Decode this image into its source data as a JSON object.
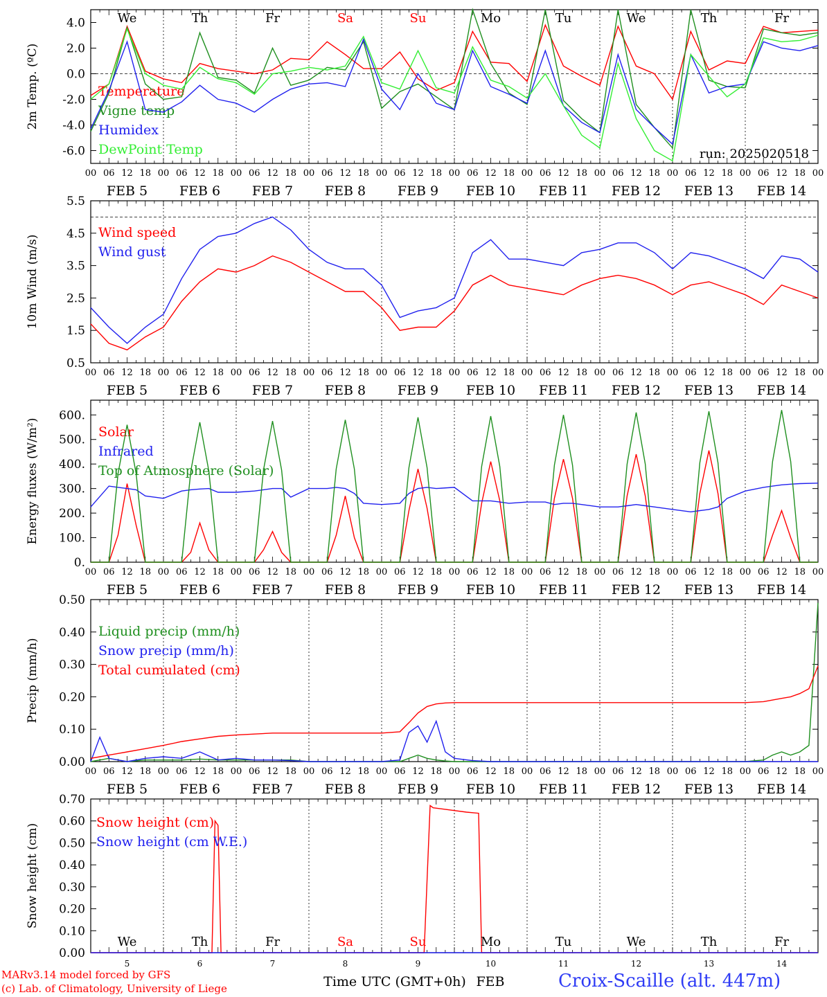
{
  "footer": {
    "model_line": "MARv3.14 model forced by GFS",
    "credit_line": "(c) Lab. of Climatology, University of Liege",
    "time_axis_label": "Time UTC (GMT+0h)",
    "month_label": "FEB",
    "station": "Croix-Scaille (alt. 447m)"
  },
  "colors": {
    "red": "#ff0000",
    "green": "#1f8f1f",
    "blue": "#2020ee",
    "lightgreen": "#33ee33"
  },
  "chart_data": [
    {
      "type": "line",
      "id": "temperature",
      "ylabel": "2m Temp. (ºC)",
      "ylim": [
        -7,
        5
      ],
      "yticks": [
        "4.0",
        "2.0",
        "0.0",
        "-2.0",
        "-4.0",
        "-6.0"
      ],
      "ytick_values": [
        4,
        2,
        0,
        -2,
        -4,
        -6
      ],
      "reference_line": 0,
      "annotation": "run: 2025020518",
      "day_labels": [
        {
          "label": "We",
          "color": "#000000"
        },
        {
          "label": "Th",
          "color": "#000000"
        },
        {
          "label": "Fr",
          "color": "#000000"
        },
        {
          "label": "Sa",
          "color": "#ff0000"
        },
        {
          "label": "Su",
          "color": "#ff0000"
        },
        {
          "label": "Mo",
          "color": "#000000"
        },
        {
          "label": "Tu",
          "color": "#000000"
        },
        {
          "label": "We",
          "color": "#000000"
        },
        {
          "label": "Th",
          "color": "#000000"
        },
        {
          "label": "Fr",
          "color": "#000000"
        }
      ],
      "x_hours": [
        0,
        6,
        12,
        18,
        24,
        30,
        36,
        42,
        48,
        54,
        60,
        66,
        72,
        78,
        84,
        90,
        96,
        102,
        108,
        114,
        120,
        126,
        132,
        138,
        144,
        150,
        156,
        162,
        168,
        174,
        180,
        186,
        192,
        198,
        204,
        210,
        216,
        222,
        228,
        234,
        240
      ],
      "series": [
        {
          "name": "Temperature",
          "color": "#ff0000",
          "values": [
            -1.7,
            -0.8,
            3.7,
            0.2,
            -0.4,
            -0.7,
            0.8,
            0.4,
            0.2,
            0.0,
            0.3,
            1.2,
            1.1,
            2.5,
            1.5,
            0.4,
            0.4,
            1.7,
            -0.4,
            -1.3,
            -0.7,
            3.3,
            0.9,
            0.8,
            -0.6,
            3.8,
            0.6,
            -0.2,
            -0.9,
            3.7,
            0.6,
            0.0,
            -2.0,
            3.3,
            0.3,
            1.0,
            0.8,
            3.7,
            3.2,
            3.3,
            3.4
          ]
        },
        {
          "name": "Vigne temp",
          "color": "#1f8f1f",
          "values": [
            -4.5,
            -1.5,
            3.6,
            -0.8,
            -2.0,
            -1.8,
            3.2,
            -0.3,
            -0.5,
            -1.5,
            2.0,
            -0.9,
            -0.5,
            0.5,
            0.3,
            2.5,
            -2.7,
            -1.4,
            -0.8,
            -1.8,
            -2.8,
            5.0,
            0.8,
            -1.5,
            -2.4,
            5.0,
            -2.1,
            -3.5,
            -4.6,
            5.0,
            -2.4,
            -4.2,
            -5.8,
            5.0,
            -0.5,
            -1.0,
            -1.1,
            3.5,
            3.2,
            3.0,
            3.2
          ]
        },
        {
          "name": "Humidex",
          "color": "#2020ee",
          "values": [
            -4.3,
            -1.3,
            2.5,
            -2.8,
            -3.0,
            -2.2,
            -0.9,
            -2.0,
            -2.3,
            -3.0,
            -2.0,
            -1.2,
            -0.8,
            -0.7,
            -1.0,
            2.7,
            -1.2,
            -2.8,
            0.0,
            -2.3,
            -2.8,
            1.8,
            -1.0,
            -1.6,
            -2.3,
            1.8,
            -2.5,
            -3.8,
            -4.6,
            1.5,
            -2.8,
            -4.2,
            -5.5,
            1.5,
            -1.5,
            -1.0,
            -0.8,
            2.5,
            2.0,
            1.8,
            2.2
          ]
        },
        {
          "name": "DewPoint Temp",
          "color": "#33ee33",
          "values": [
            -2.0,
            -0.8,
            3.5,
            0.0,
            -0.9,
            -1.2,
            0.5,
            -0.4,
            -0.7,
            -1.6,
            0.0,
            0.2,
            0.5,
            0.3,
            0.6,
            2.9,
            -0.7,
            -1.2,
            1.8,
            -1.1,
            -1.5,
            2.1,
            -0.5,
            -1.0,
            -1.9,
            0.0,
            -2.5,
            -4.8,
            -5.8,
            0.8,
            -3.5,
            -6.0,
            -6.8,
            1.5,
            -0.2,
            -1.8,
            -0.8,
            2.8,
            2.5,
            2.6,
            3.0
          ]
        }
      ]
    },
    {
      "type": "line",
      "id": "wind",
      "ylabel": "10m Wind (m/s)",
      "ylim": [
        0.5,
        5.5
      ],
      "yticks": [
        "5.5",
        "4.5",
        "3.5",
        "2.5",
        "1.5",
        "0.5"
      ],
      "ytick_values": [
        5.5,
        4.5,
        3.5,
        2.5,
        1.5,
        0.5
      ],
      "reference_line": 5.0,
      "x_hours": [
        0,
        6,
        12,
        18,
        24,
        30,
        36,
        42,
        48,
        54,
        60,
        66,
        72,
        78,
        84,
        90,
        96,
        102,
        108,
        114,
        120,
        126,
        132,
        138,
        144,
        150,
        156,
        162,
        168,
        174,
        180,
        186,
        192,
        198,
        204,
        210,
        216,
        222,
        228,
        234,
        240
      ],
      "series": [
        {
          "name": "Wind speed",
          "color": "#ff0000",
          "values": [
            1.7,
            1.1,
            0.9,
            1.3,
            1.6,
            2.4,
            3.0,
            3.4,
            3.3,
            3.5,
            3.8,
            3.6,
            3.3,
            3.0,
            2.7,
            2.7,
            2.2,
            1.5,
            1.6,
            1.6,
            2.1,
            2.9,
            3.2,
            2.9,
            2.8,
            2.7,
            2.6,
            2.9,
            3.1,
            3.2,
            3.1,
            2.9,
            2.6,
            2.9,
            3.0,
            2.8,
            2.6,
            2.3,
            2.9,
            2.7,
            2.5
          ]
        },
        {
          "name": "Wind gust",
          "color": "#2020ee",
          "values": [
            2.2,
            1.6,
            1.1,
            1.6,
            2.0,
            3.1,
            4.0,
            4.4,
            4.5,
            4.8,
            5.0,
            4.6,
            4.0,
            3.6,
            3.4,
            3.4,
            2.9,
            1.9,
            2.1,
            2.2,
            2.5,
            3.9,
            4.3,
            3.7,
            3.7,
            3.6,
            3.5,
            3.9,
            4.0,
            4.2,
            4.2,
            3.9,
            3.4,
            3.9,
            3.8,
            3.6,
            3.4,
            3.1,
            3.8,
            3.7,
            3.3
          ]
        }
      ]
    },
    {
      "type": "line",
      "id": "energy",
      "ylabel": "Energy fluxes (W/m²)",
      "ylim": [
        0,
        660
      ],
      "yticks": [
        "600.",
        "500.",
        "400.",
        "300.",
        "200.",
        "100.",
        "0."
      ],
      "ytick_values": [
        600,
        500,
        400,
        300,
        200,
        100,
        0
      ],
      "x_hours": [
        0,
        6,
        9,
        12,
        15,
        18,
        24,
        30,
        33,
        36,
        39,
        42,
        48,
        54,
        57,
        60,
        63,
        66,
        72,
        78,
        81,
        84,
        87,
        90,
        96,
        102,
        105,
        108,
        111,
        114,
        120,
        126,
        129,
        132,
        135,
        138,
        144,
        150,
        153,
        156,
        159,
        162,
        168,
        174,
        177,
        180,
        183,
        186,
        192,
        198,
        201,
        204,
        207,
        210,
        216,
        222,
        225,
        228,
        231,
        234,
        240
      ],
      "series": [
        {
          "name": "Solar",
          "color": "#ff0000",
          "values": [
            0,
            0,
            110,
            320,
            150,
            0,
            0,
            0,
            40,
            160,
            50,
            0,
            0,
            0,
            50,
            125,
            40,
            0,
            0,
            0,
            110,
            270,
            100,
            0,
            0,
            0,
            210,
            380,
            220,
            0,
            0,
            0,
            240,
            410,
            250,
            0,
            0,
            0,
            260,
            420,
            260,
            0,
            0,
            0,
            270,
            440,
            270,
            0,
            0,
            0,
            280,
            455,
            280,
            0,
            0,
            0,
            110,
            210,
            100,
            0,
            0
          ]
        },
        {
          "name": "Infrared",
          "color": "#2020ee",
          "values": [
            225,
            310,
            305,
            300,
            295,
            270,
            260,
            290,
            295,
            298,
            300,
            285,
            285,
            290,
            295,
            300,
            300,
            265,
            300,
            300,
            305,
            300,
            280,
            240,
            235,
            240,
            280,
            300,
            305,
            300,
            305,
            250,
            250,
            250,
            245,
            240,
            245,
            245,
            235,
            240,
            240,
            235,
            225,
            225,
            230,
            235,
            230,
            225,
            215,
            205,
            210,
            215,
            225,
            260,
            290,
            305,
            310,
            315,
            318,
            320,
            322
          ]
        },
        {
          "name": "Top of Atmosphere (Solar)",
          "color": "#1f8f1f",
          "values": [
            0,
            0,
            360,
            560,
            360,
            0,
            0,
            0,
            370,
            570,
            370,
            0,
            0,
            0,
            375,
            575,
            375,
            0,
            0,
            0,
            380,
            580,
            380,
            0,
            0,
            0,
            385,
            590,
            385,
            0,
            0,
            0,
            390,
            595,
            390,
            0,
            0,
            0,
            395,
            600,
            395,
            0,
            0,
            0,
            400,
            610,
            400,
            0,
            0,
            0,
            405,
            615,
            405,
            0,
            0,
            0,
            410,
            620,
            410,
            0,
            0
          ]
        }
      ]
    },
    {
      "type": "line",
      "id": "precip",
      "ylabel": "Precip (mm/h)",
      "ylim": [
        0,
        0.5
      ],
      "yticks": [
        "0.50",
        "0.40",
        "0.30",
        "0.20",
        "0.10",
        "0.00"
      ],
      "ytick_values": [
        0.5,
        0.4,
        0.3,
        0.2,
        0.1,
        0.0
      ],
      "x_hours": [
        0,
        3,
        6,
        9,
        12,
        18,
        24,
        30,
        36,
        42,
        48,
        54,
        60,
        66,
        72,
        78,
        84,
        90,
        96,
        102,
        105,
        108,
        111,
        114,
        117,
        120,
        126,
        132,
        144,
        156,
        168,
        180,
        192,
        204,
        216,
        222,
        225,
        228,
        231,
        234,
        237,
        240
      ],
      "series": [
        {
          "name": "Liquid precip (mm/h)",
          "color": "#1f8f1f",
          "values": [
            0,
            0.005,
            0.01,
            0.005,
            0,
            0.005,
            0.005,
            0.005,
            0.008,
            0.005,
            0.005,
            0.005,
            0.005,
            0.005,
            0,
            0,
            0,
            0,
            0,
            0,
            0.01,
            0.02,
            0.01,
            0.005,
            0.002,
            0,
            0,
            0,
            0,
            0,
            0,
            0,
            0,
            0,
            0,
            0.005,
            0.02,
            0.03,
            0.02,
            0.03,
            0.05,
            0.49
          ]
        },
        {
          "name": "Snow precip (mm/h)",
          "color": "#2020ee",
          "values": [
            0,
            0.075,
            0.01,
            0.005,
            0,
            0.01,
            0.015,
            0.01,
            0.03,
            0.005,
            0.01,
            0.005,
            0.005,
            0.003,
            0,
            0,
            0,
            0,
            0,
            0.005,
            0.09,
            0.11,
            0.06,
            0.125,
            0.03,
            0.01,
            0.003,
            0,
            0,
            0,
            0,
            0,
            0,
            0,
            0,
            0,
            0,
            0,
            0,
            0,
            0,
            0
          ]
        },
        {
          "name": "Total cumulated (cm)",
          "color": "#ff0000",
          "values": [
            0.01,
            0.015,
            0.02,
            0.025,
            0.03,
            0.04,
            0.05,
            0.062,
            0.07,
            0.078,
            0.082,
            0.085,
            0.088,
            0.088,
            0.088,
            0.088,
            0.088,
            0.088,
            0.088,
            0.092,
            0.12,
            0.15,
            0.17,
            0.178,
            0.181,
            0.182,
            0.182,
            0.182,
            0.182,
            0.182,
            0.182,
            0.182,
            0.182,
            0.182,
            0.182,
            0.185,
            0.19,
            0.195,
            0.2,
            0.21,
            0.225,
            0.295
          ]
        }
      ]
    },
    {
      "type": "line",
      "id": "snow",
      "ylabel": "Snow height (cm)",
      "ylim": [
        0,
        0.7
      ],
      "yticks": [
        "0.70",
        "0.60",
        "0.50",
        "0.40",
        "0.30",
        "0.20",
        "0.10",
        "0.00"
      ],
      "ytick_values": [
        0.7,
        0.6,
        0.5,
        0.4,
        0.3,
        0.2,
        0.1,
        0.0
      ],
      "day_labels": [
        {
          "label": "We",
          "color": "#000000"
        },
        {
          "label": "Th",
          "color": "#000000"
        },
        {
          "label": "Fr",
          "color": "#000000"
        },
        {
          "label": "Sa",
          "color": "#ff0000"
        },
        {
          "label": "Su",
          "color": "#ff0000"
        },
        {
          "label": "Mo",
          "color": "#000000"
        },
        {
          "label": "Tu",
          "color": "#000000"
        },
        {
          "label": "We",
          "color": "#000000"
        },
        {
          "label": "Th",
          "color": "#000000"
        },
        {
          "label": "Fr",
          "color": "#000000"
        }
      ],
      "day_numbers": [
        "5",
        "6",
        "7",
        "8",
        "9",
        "10",
        "11",
        "12",
        "13",
        "14"
      ],
      "x_hours": [
        0,
        40,
        41,
        42,
        43,
        44,
        110,
        112,
        113,
        124,
        128,
        129,
        240
      ],
      "series": [
        {
          "name": "Snow height (cm)",
          "color": "#ff0000",
          "values": [
            0,
            0,
            0.6,
            0.58,
            0,
            0,
            0,
            0.67,
            0.66,
            0.64,
            0.635,
            0,
            0
          ]
        },
        {
          "name": "Snow height (cm W.E.)",
          "color": "#2020ee",
          "values": [
            0,
            0,
            0,
            0,
            0,
            0,
            0,
            0,
            0,
            0,
            0,
            0,
            0
          ]
        }
      ]
    }
  ],
  "date_axis": {
    "hour_ticks": [
      "00",
      "06",
      "12",
      "18"
    ],
    "dates": [
      "FEB  5",
      "FEB  6",
      "FEB  7",
      "FEB  8",
      "FEB  9",
      "FEB 10",
      "FEB 11",
      "FEB 12",
      "FEB 13",
      "FEB 14"
    ],
    "end_tick": "00"
  }
}
